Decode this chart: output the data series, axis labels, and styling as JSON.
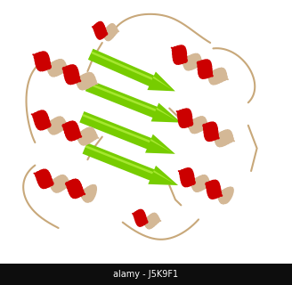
{
  "background_color": "#ffffff",
  "watermark_text": "alamy - J5K9F1",
  "watermark_bg": "#0d0d0d",
  "watermark_color": "#ffffff",
  "watermark_fontsize": 7,
  "helix_color": "#cc0000",
  "helix_inner_color": "#d4b896",
  "sheet_color": "#77cc00",
  "sheet_highlight": "#ccff55",
  "loop_color": "#c8a87a",
  "figsize": [
    3.28,
    3.2
  ],
  "dpi": 100
}
